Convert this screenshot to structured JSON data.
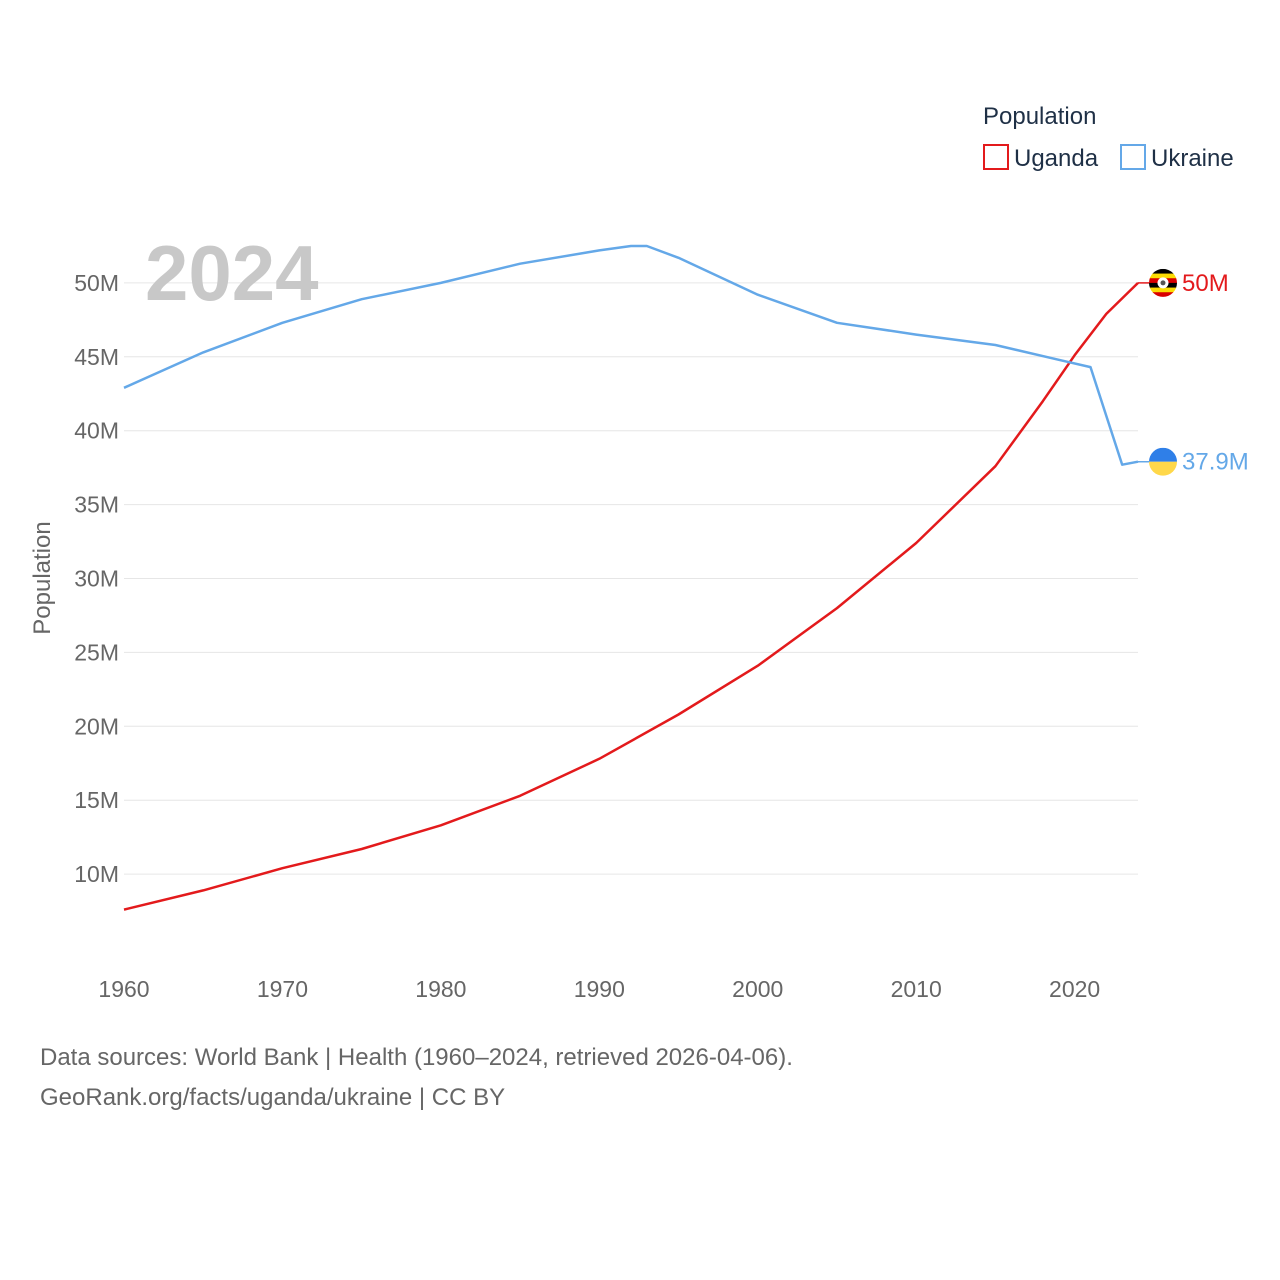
{
  "chart_data": {
    "type": "line",
    "title": "Population",
    "watermark_year": "2024",
    "ylabel": "Population",
    "xlabel": "",
    "xlim": [
      1960,
      2024
    ],
    "ylim": [
      5000000,
      55000000
    ],
    "x_ticks": [
      1960,
      1970,
      1980,
      1990,
      2000,
      2010,
      2020
    ],
    "x_tick_labels": [
      "1960",
      "1970",
      "1980",
      "1990",
      "2000",
      "2010",
      "2020"
    ],
    "y_ticks": [
      10000000,
      15000000,
      20000000,
      25000000,
      30000000,
      35000000,
      40000000,
      45000000,
      50000000
    ],
    "y_tick_labels": [
      "10M",
      "15M",
      "20M",
      "25M",
      "30M",
      "35M",
      "40M",
      "45M",
      "50M"
    ],
    "grid": true,
    "legend": {
      "title": "Population",
      "position": "top-right"
    },
    "series": [
      {
        "name": "Uganda",
        "color": "#e31a1c",
        "end_label": "50M",
        "flag": "uganda-flag-icon",
        "points": [
          [
            1960,
            7600000
          ],
          [
            1965,
            8900000
          ],
          [
            1970,
            10400000
          ],
          [
            1975,
            11700000
          ],
          [
            1980,
            13300000
          ],
          [
            1985,
            15300000
          ],
          [
            1990,
            17800000
          ],
          [
            1995,
            20800000
          ],
          [
            2000,
            24100000
          ],
          [
            2005,
            28000000
          ],
          [
            2010,
            32400000
          ],
          [
            2015,
            37600000
          ],
          [
            2018,
            42000000
          ],
          [
            2020,
            45100000
          ],
          [
            2022,
            47900000
          ],
          [
            2024,
            50000000
          ]
        ]
      },
      {
        "name": "Ukraine",
        "color": "#64a8e8",
        "end_label": "37.9M",
        "flag": "ukraine-flag-icon",
        "points": [
          [
            1960,
            42900000
          ],
          [
            1965,
            45300000
          ],
          [
            1970,
            47300000
          ],
          [
            1975,
            48900000
          ],
          [
            1980,
            50000000
          ],
          [
            1985,
            51300000
          ],
          [
            1990,
            52200000
          ],
          [
            1992,
            52500000
          ],
          [
            1993,
            52500000
          ],
          [
            1995,
            51700000
          ],
          [
            2000,
            49200000
          ],
          [
            2005,
            47300000
          ],
          [
            2010,
            46500000
          ],
          [
            2015,
            45800000
          ],
          [
            2019,
            44800000
          ],
          [
            2021,
            44300000
          ],
          [
            2022,
            41000000
          ],
          [
            2023,
            37700000
          ],
          [
            2024,
            37900000
          ]
        ]
      }
    ]
  },
  "footer": {
    "source": "Data sources: World Bank | Health (1960–2024, retrieved 2026-04-06).",
    "credit": "GeoRank.org/facts/uganda/ukraine | CC BY"
  }
}
